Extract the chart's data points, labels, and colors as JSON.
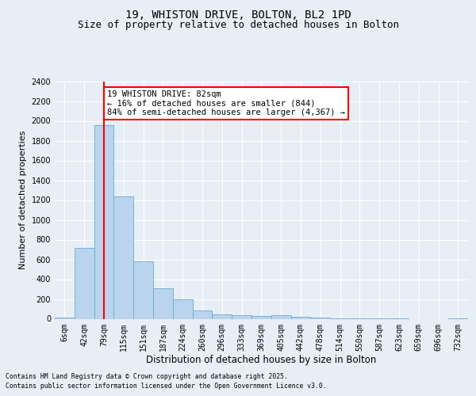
{
  "title_line1": "19, WHISTON DRIVE, BOLTON, BL2 1PD",
  "title_line2": "Size of property relative to detached houses in Bolton",
  "xlabel": "Distribution of detached houses by size in Bolton",
  "ylabel": "Number of detached properties",
  "categories": [
    "6sqm",
    "42sqm",
    "79sqm",
    "115sqm",
    "151sqm",
    "187sqm",
    "224sqm",
    "260sqm",
    "296sqm",
    "333sqm",
    "369sqm",
    "405sqm",
    "442sqm",
    "478sqm",
    "514sqm",
    "550sqm",
    "587sqm",
    "623sqm",
    "659sqm",
    "696sqm",
    "732sqm"
  ],
  "values": [
    15,
    720,
    1960,
    1240,
    580,
    305,
    200,
    85,
    48,
    35,
    30,
    35,
    18,
    12,
    5,
    2,
    1,
    1,
    0,
    0,
    5
  ],
  "bar_color": "#bad4ed",
  "bar_edge_color": "#6aaad4",
  "vline_x": 2,
  "vline_color": "red",
  "annotation_text": "19 WHISTON DRIVE: 82sqm\n← 16% of detached houses are smaller (844)\n84% of semi-detached houses are larger (4,367) →",
  "annotation_box_color": "white",
  "annotation_box_edge": "red",
  "ylim": [
    0,
    2400
  ],
  "yticks": [
    0,
    200,
    400,
    600,
    800,
    1000,
    1200,
    1400,
    1600,
    1800,
    2000,
    2200,
    2400
  ],
  "bg_color": "#e8eef6",
  "plot_bg_color": "#e8eef6",
  "grid_color": "white",
  "footer_line1": "Contains HM Land Registry data © Crown copyright and database right 2025.",
  "footer_line2": "Contains public sector information licensed under the Open Government Licence v3.0.",
  "title_fontsize": 10,
  "subtitle_fontsize": 9,
  "tick_fontsize": 7,
  "ylabel_fontsize": 8,
  "xlabel_fontsize": 8.5,
  "annot_fontsize": 7.5
}
